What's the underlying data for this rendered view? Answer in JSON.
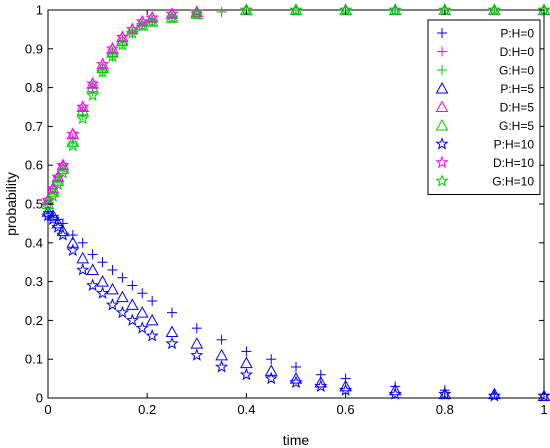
{
  "chart_data": {
    "type": "scatter",
    "title": "",
    "xlabel": "time",
    "ylabel": "probability",
    "xlim": [
      0,
      1
    ],
    "ylim": [
      0,
      1
    ],
    "xticks": [
      0,
      0.2,
      0.4,
      0.6,
      0.8,
      1
    ],
    "xtick_labels": [
      "0",
      "0.2",
      "0.4",
      "0.6",
      "0.8",
      "1"
    ],
    "yticks": [
      0,
      0.1,
      0.2,
      0.3,
      0.4,
      0.5,
      0.6,
      0.7,
      0.8,
      0.9,
      1
    ],
    "ytick_labels": [
      "0",
      "0.1",
      "0.2",
      "0.3",
      "0.4",
      "0.5",
      "0.6",
      "0.7",
      "0.8",
      "0.9",
      "1"
    ],
    "grid": false,
    "legend_position": "top-right",
    "series": [
      {
        "name": "P:H=0",
        "marker": "plus",
        "color": "#0000ff",
        "x": [
          0.0,
          0.01,
          0.02,
          0.03,
          0.05,
          0.07,
          0.09,
          0.11,
          0.13,
          0.15,
          0.17,
          0.19,
          0.21,
          0.25,
          0.3,
          0.35,
          0.4,
          0.45,
          0.5,
          0.55,
          0.6,
          0.7,
          0.8,
          0.9,
          1.0
        ],
        "y": [
          0.48,
          0.47,
          0.46,
          0.45,
          0.42,
          0.4,
          0.37,
          0.35,
          0.33,
          0.31,
          0.29,
          0.27,
          0.25,
          0.22,
          0.18,
          0.15,
          0.12,
          0.1,
          0.08,
          0.06,
          0.05,
          0.03,
          0.02,
          0.01,
          0.01
        ]
      },
      {
        "name": "D:H=0",
        "marker": "plus",
        "color": "#ff00ff",
        "x": [
          0.0,
          0.01,
          0.02,
          0.03,
          0.05,
          0.07,
          0.09,
          0.11,
          0.13,
          0.15,
          0.17,
          0.19,
          0.21,
          0.25,
          0.3,
          0.35,
          0.4,
          0.5,
          0.6,
          0.7,
          0.8,
          0.9,
          1.0
        ],
        "y": [
          0.51,
          0.54,
          0.57,
          0.6,
          0.67,
          0.74,
          0.8,
          0.85,
          0.89,
          0.92,
          0.94,
          0.96,
          0.97,
          0.98,
          0.99,
          0.995,
          1.0,
          1.0,
          1.0,
          1.0,
          1.0,
          1.0,
          1.0
        ]
      },
      {
        "name": "G:H=0",
        "marker": "plus",
        "color": "#00cc00",
        "x": [
          0.0,
          0.01,
          0.02,
          0.03,
          0.05,
          0.07,
          0.09,
          0.11,
          0.13,
          0.15,
          0.17,
          0.19,
          0.21,
          0.25,
          0.3,
          0.35,
          0.4,
          0.5,
          0.6,
          0.7,
          0.8,
          0.9,
          1.0
        ],
        "y": [
          0.5,
          0.53,
          0.56,
          0.59,
          0.66,
          0.73,
          0.79,
          0.84,
          0.88,
          0.91,
          0.94,
          0.96,
          0.97,
          0.98,
          0.99,
          0.995,
          1.0,
          1.0,
          1.0,
          1.0,
          1.0,
          1.0,
          1.0
        ]
      },
      {
        "name": "P:H=5",
        "marker": "triangle",
        "color": "#0000ff",
        "x": [
          0.0,
          0.01,
          0.02,
          0.03,
          0.05,
          0.07,
          0.09,
          0.11,
          0.13,
          0.15,
          0.17,
          0.19,
          0.21,
          0.25,
          0.3,
          0.35,
          0.4,
          0.45,
          0.5,
          0.55,
          0.6,
          0.7,
          0.8,
          0.9,
          1.0
        ],
        "y": [
          0.48,
          0.47,
          0.45,
          0.43,
          0.4,
          0.36,
          0.33,
          0.3,
          0.28,
          0.26,
          0.24,
          0.22,
          0.2,
          0.17,
          0.14,
          0.11,
          0.09,
          0.07,
          0.05,
          0.04,
          0.03,
          0.02,
          0.01,
          0.01,
          0.005
        ]
      },
      {
        "name": "D:H=5",
        "marker": "triangle",
        "color": "#ff00ff",
        "x": [
          0.0,
          0.01,
          0.02,
          0.03,
          0.05,
          0.07,
          0.09,
          0.11,
          0.13,
          0.15,
          0.17,
          0.19,
          0.21,
          0.25,
          0.3,
          0.4,
          0.5,
          0.6,
          0.7,
          0.8,
          0.9,
          1.0
        ],
        "y": [
          0.51,
          0.54,
          0.57,
          0.6,
          0.68,
          0.75,
          0.81,
          0.86,
          0.9,
          0.93,
          0.95,
          0.97,
          0.98,
          0.99,
          0.995,
          1.0,
          1.0,
          1.0,
          1.0,
          1.0,
          1.0,
          1.0
        ]
      },
      {
        "name": "G:H=5",
        "marker": "triangle",
        "color": "#00cc00",
        "x": [
          0.0,
          0.01,
          0.02,
          0.03,
          0.05,
          0.07,
          0.09,
          0.11,
          0.13,
          0.15,
          0.17,
          0.19,
          0.21,
          0.25,
          0.3,
          0.4,
          0.5,
          0.6,
          0.7,
          0.8,
          0.9,
          1.0
        ],
        "y": [
          0.5,
          0.53,
          0.56,
          0.59,
          0.66,
          0.74,
          0.8,
          0.85,
          0.89,
          0.92,
          0.95,
          0.96,
          0.97,
          0.98,
          0.99,
          1.0,
          1.0,
          1.0,
          1.0,
          1.0,
          1.0,
          1.0
        ]
      },
      {
        "name": "P:H=10",
        "marker": "star",
        "color": "#0000ff",
        "x": [
          0.0,
          0.01,
          0.02,
          0.03,
          0.05,
          0.07,
          0.09,
          0.11,
          0.13,
          0.15,
          0.17,
          0.19,
          0.21,
          0.25,
          0.3,
          0.35,
          0.4,
          0.45,
          0.5,
          0.55,
          0.6,
          0.7,
          0.8,
          0.9,
          1.0
        ],
        "y": [
          0.47,
          0.46,
          0.44,
          0.42,
          0.38,
          0.33,
          0.29,
          0.27,
          0.24,
          0.22,
          0.2,
          0.18,
          0.16,
          0.14,
          0.11,
          0.08,
          0.06,
          0.05,
          0.04,
          0.03,
          0.02,
          0.01,
          0.01,
          0.005,
          0.005
        ]
      },
      {
        "name": "D:H=10",
        "marker": "star",
        "color": "#ff00ff",
        "x": [
          0.0,
          0.01,
          0.02,
          0.03,
          0.05,
          0.07,
          0.09,
          0.11,
          0.13,
          0.15,
          0.17,
          0.19,
          0.21,
          0.25,
          0.3,
          0.4,
          0.5,
          0.6,
          0.7,
          0.8,
          0.9,
          1.0
        ],
        "y": [
          0.51,
          0.54,
          0.57,
          0.6,
          0.68,
          0.75,
          0.81,
          0.86,
          0.9,
          0.93,
          0.95,
          0.97,
          0.98,
          0.99,
          0.995,
          1.0,
          1.0,
          1.0,
          1.0,
          1.0,
          1.0,
          1.0
        ]
      },
      {
        "name": "G:H=10",
        "marker": "star",
        "color": "#00cc00",
        "x": [
          0.0,
          0.01,
          0.02,
          0.03,
          0.05,
          0.07,
          0.09,
          0.11,
          0.13,
          0.15,
          0.17,
          0.19,
          0.21,
          0.25,
          0.3,
          0.4,
          0.5,
          0.6,
          0.7,
          0.8,
          0.9,
          1.0
        ],
        "y": [
          0.5,
          0.52,
          0.55,
          0.58,
          0.65,
          0.72,
          0.78,
          0.84,
          0.88,
          0.91,
          0.94,
          0.96,
          0.97,
          0.98,
          0.99,
          1.0,
          1.0,
          1.0,
          1.0,
          1.0,
          1.0,
          1.0
        ]
      }
    ]
  }
}
